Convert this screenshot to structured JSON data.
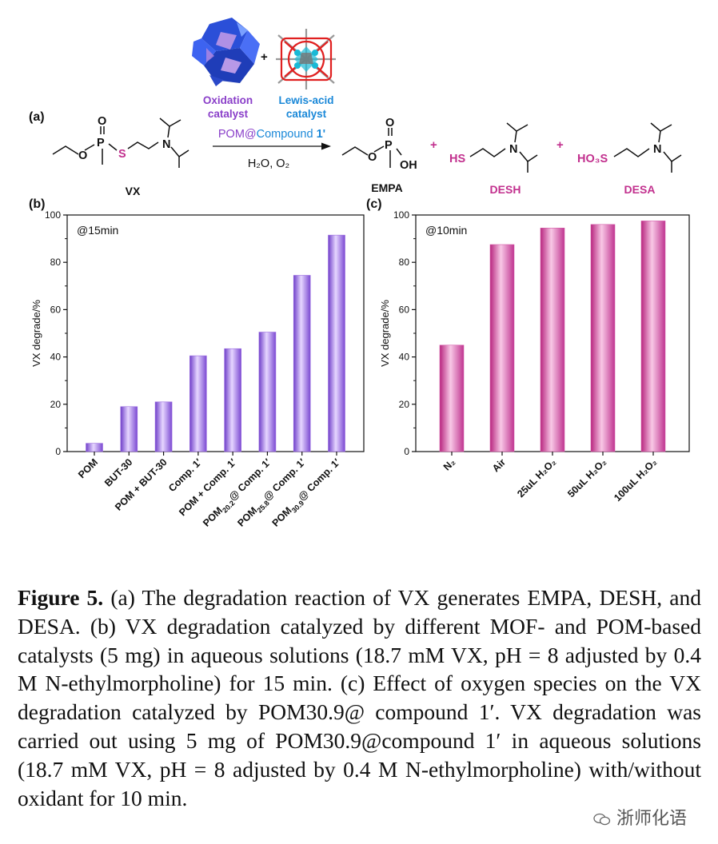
{
  "panel_a": {
    "label": "(a)",
    "oxidation_catalyst": [
      "Oxidation",
      "catalyst"
    ],
    "lewis_catalyst": [
      "Lewis-acid",
      "catalyst"
    ],
    "plus": "+",
    "arrow_label_pom": "POM@",
    "arrow_label_compound": "Compound ",
    "arrow_label_num": "1'",
    "conditions": "H₂O, O₂",
    "reactant": "VX",
    "reactant_atoms": {
      "p": "P",
      "o_top": "O",
      "o_left": "O",
      "s": "S",
      "n": "N"
    },
    "products": [
      {
        "name": "EMPA",
        "atoms": {
          "p": "P",
          "o_top": "O",
          "o_left": "O",
          "oh": "OH"
        }
      },
      {
        "name": "DESH",
        "atoms": {
          "hs": "HS",
          "n": "N"
        }
      },
      {
        "name": "DESA",
        "atoms": {
          "ho3s": "HO₃S",
          "n": "N"
        }
      }
    ],
    "product_plus": "+"
  },
  "chart_data": [
    {
      "type": "bar",
      "panel": "(b)",
      "annotation": "@15min",
      "ylabel": "VX degrade/%",
      "xlabel": "",
      "ylim": [
        0,
        100
      ],
      "yticks": [
        "0",
        "20",
        "40",
        "60",
        "80",
        "100"
      ],
      "categories": [
        "POM",
        "BUT-30",
        "POM + BUT-30",
        "Comp. 1′",
        "POM + Comp. 1′",
        "POM20.2@ Comp. 1′",
        "POM25.8@ Comp. 1′",
        "POM30.9@ Comp. 1′"
      ],
      "values": [
        3.5,
        19,
        21,
        40.5,
        43.5,
        50.5,
        74.5,
        91.5
      ],
      "color": "#9b6ce0"
    },
    {
      "type": "bar",
      "panel": "(c)",
      "annotation": "@10min",
      "ylabel": "VX degrade/%",
      "xlabel": "",
      "ylim": [
        0,
        100
      ],
      "yticks": [
        "0",
        "20",
        "40",
        "60",
        "80",
        "100"
      ],
      "categories": [
        "N₂",
        "Air",
        "25uL H₂O₂",
        "50uL H₂O₂",
        "100uL H₂O₂"
      ],
      "values": [
        45,
        87.5,
        94.5,
        96,
        97.5
      ],
      "color": "#d45aa8"
    }
  ],
  "caption": {
    "label": "Figure 5.",
    "text": " (a) The degradation reaction of VX generates EMPA, DESH, and DESA. (b) VX degradation catalyzed by different MOF- and POM-based catalysts (5 mg) in aqueous solutions (18.7 mM VX, pH = 8 adjusted by 0.4 M N-ethylmorpholine) for 15 min. (c) Effect of oxygen species on the VX degradation catalyzed by POM30.9@ compound 1′. VX degradation was carried out using 5 mg of POM30.9@compound 1′ in aqueous solutions (18.7 mM VX, pH = 8 adjusted by 0.4 M N-ethylmorpholine) with/without oxidant for 10 min."
  },
  "watermark": "浙师化语"
}
